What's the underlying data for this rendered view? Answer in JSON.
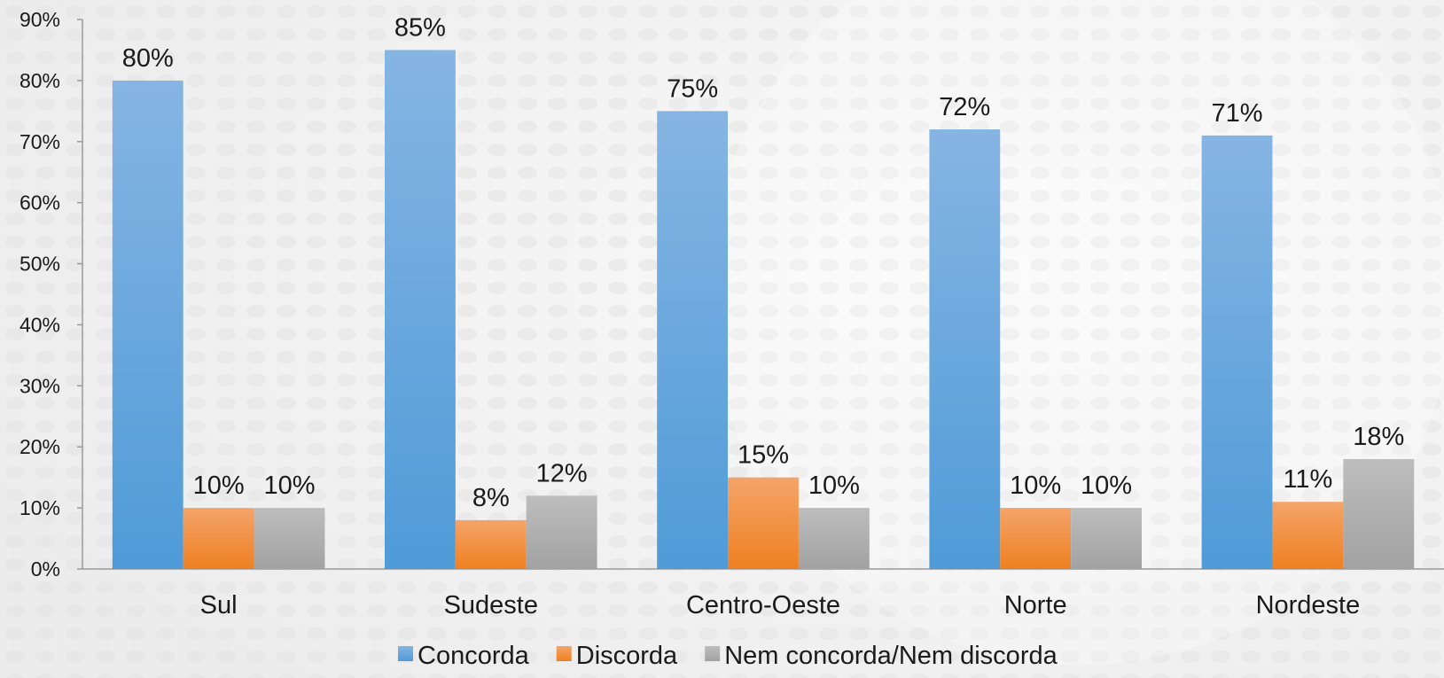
{
  "chart_data": {
    "type": "bar",
    "categories": [
      "Sul",
      "Sudeste",
      "Centro-Oeste",
      "Norte",
      "Nordeste"
    ],
    "series": [
      {
        "name": "Concorda",
        "values": [
          80,
          85,
          75,
          72,
          71
        ],
        "labels": [
          "80%",
          "85%",
          "75%",
          "72%",
          "71%"
        ],
        "color": "#5aa1dc"
      },
      {
        "name": "Discorda",
        "values": [
          10,
          8,
          15,
          10,
          11
        ],
        "labels": [
          "10%",
          "8%",
          "15%",
          "10%",
          "11%"
        ],
        "color": "#f0862c"
      },
      {
        "name": "Nem concorda/Nem discorda",
        "values": [
          10,
          12,
          10,
          10,
          18
        ],
        "labels": [
          "10%",
          "12%",
          "10%",
          "10%",
          "18%"
        ],
        "color": "#a8a8a8"
      }
    ],
    "ylim": [
      0,
      90
    ],
    "yticks": [
      0,
      10,
      20,
      30,
      40,
      50,
      60,
      70,
      80,
      90
    ],
    "ytick_labels": [
      "0%",
      "10%",
      "20%",
      "30%",
      "40%",
      "50%",
      "60%",
      "70%",
      "80%",
      "90%"
    ],
    "grid": false,
    "legend_position": "bottom"
  }
}
